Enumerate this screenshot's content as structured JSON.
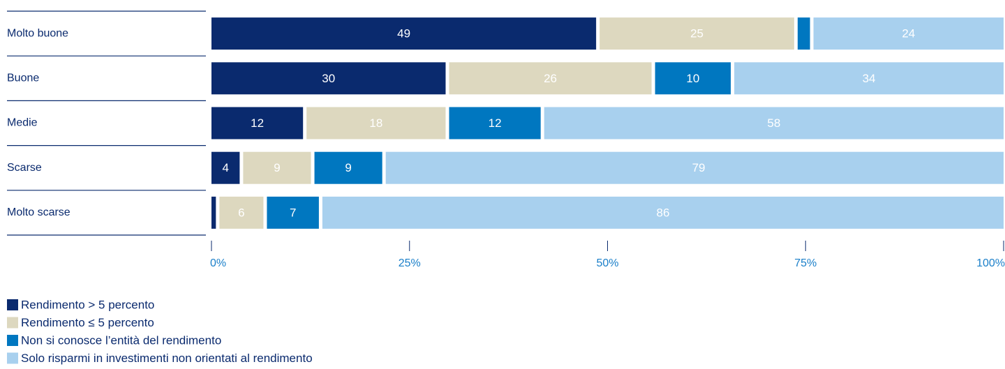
{
  "chart_data": {
    "type": "stacked-barh",
    "categories": [
      "Molto buone",
      "Buone",
      "Medie",
      "Scarse",
      "Molto scarse"
    ],
    "series": [
      {
        "name": "Rendimento > 5 percento",
        "color": "#0a2a6e",
        "values": [
          49,
          30,
          12,
          4,
          1
        ],
        "value_labels": [
          "49",
          "30",
          "12",
          "4",
          null
        ]
      },
      {
        "name": "Rendimento ≤ 5 percento",
        "color": "#ddd8bf",
        "values": [
          25,
          26,
          18,
          9,
          6
        ]
      },
      {
        "name": "Non si conosce l’entità del rendimento",
        "color": "#0077c0",
        "values": [
          2,
          10,
          12,
          9,
          7
        ],
        "value_labels": [
          null,
          "10",
          "12",
          "9",
          "7"
        ]
      },
      {
        "name": "Solo risparmi in investimenti non orientati al rendimento",
        "color": "#a8d0ee",
        "values": [
          24,
          34,
          58,
          79,
          86
        ]
      }
    ],
    "xlim": [
      0,
      100
    ],
    "xticks": [
      {
        "value": 0,
        "label": "0%"
      },
      {
        "value": 25,
        "label": "25%"
      },
      {
        "value": 50,
        "label": "50%"
      },
      {
        "value": 75,
        "label": "75%"
      },
      {
        "value": 100,
        "label": "100%"
      }
    ],
    "legend": "bottom-left"
  }
}
